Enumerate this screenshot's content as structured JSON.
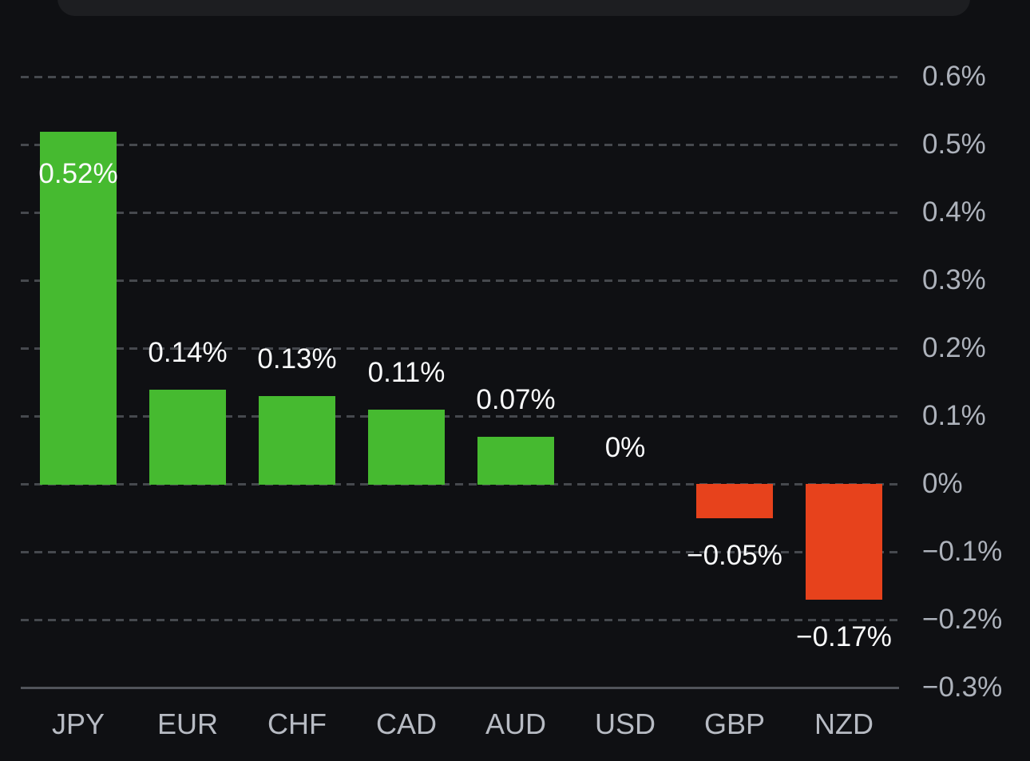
{
  "chart_data": {
    "type": "bar",
    "title": "",
    "xlabel": "",
    "ylabel": "",
    "categories": [
      "JPY",
      "EUR",
      "CHF",
      "CAD",
      "AUD",
      "USD",
      "GBP",
      "NZD"
    ],
    "values": [
      0.52,
      0.14,
      0.13,
      0.11,
      0.07,
      0,
      -0.05,
      -0.17
    ],
    "value_labels": [
      "0.52%",
      "0.14%",
      "0.13%",
      "0.11%",
      "0.07%",
      "0%",
      "−0.05%",
      "−0.17%"
    ],
    "value_label_positions": [
      "inside",
      "above",
      "above",
      "above",
      "above",
      "above",
      "below",
      "below"
    ],
    "y_ticks": [
      {
        "value": 0.6,
        "label": "0.6%",
        "line": "dashed"
      },
      {
        "value": 0.5,
        "label": "0.5%",
        "line": "dashed"
      },
      {
        "value": 0.4,
        "label": "0.4%",
        "line": "dashed"
      },
      {
        "value": 0.3,
        "label": "0.3%",
        "line": "dashed"
      },
      {
        "value": 0.2,
        "label": "0.2%",
        "line": "dashed"
      },
      {
        "value": 0.1,
        "label": "0.1%",
        "line": "dashed"
      },
      {
        "value": 0,
        "label": "0%",
        "line": "dashed"
      },
      {
        "value": -0.1,
        "label": "−0.1%",
        "line": "dashed"
      },
      {
        "value": -0.2,
        "label": "−0.2%",
        "line": "dashed"
      },
      {
        "value": -0.3,
        "label": "−0.3%",
        "line": "solid"
      }
    ],
    "ylim": [
      -0.3,
      0.65
    ],
    "grid": "horizontal-dashed",
    "legend": "none",
    "axis_label_side": "right",
    "colors": {
      "positive_bar": "#46ba30",
      "negative_bar": "#e7421c",
      "value_label": "#fafbfc",
      "axis_text": "#adb2bb",
      "background": "#0f1013"
    }
  }
}
